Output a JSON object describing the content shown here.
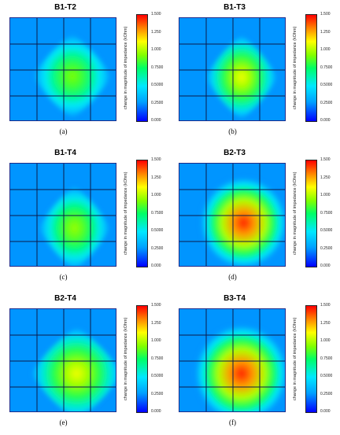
{
  "figure": {
    "panels": [
      {
        "title": "B1-T2",
        "caption": "(a)"
      },
      {
        "title": "B1-T3",
        "caption": "(b)"
      },
      {
        "title": "B1-T4",
        "caption": "(c)"
      },
      {
        "title": "B2-T3",
        "caption": "(d)"
      },
      {
        "title": "B2-T4",
        "caption": "(e)"
      },
      {
        "title": "B3-T4",
        "caption": "(f)"
      }
    ],
    "colorbar": {
      "label": "change in magnitude of impedance (kOhm)",
      "ticks": [
        "1.500",
        "1.250",
        "1.000",
        "0.7500",
        "0.5000",
        "0.2500",
        "0.000"
      ]
    }
  },
  "colors": {
    "background": "#2a5cf2",
    "grid": "#0d1a4a",
    "colormap": [
      "#0000ff",
      "#00a0ff",
      "#00e8ff",
      "#00ff66",
      "#80ff00",
      "#ffff00",
      "#ff8000",
      "#ff0000"
    ]
  },
  "chart_data": [
    {
      "type": "heatmap",
      "title": "B1-T2",
      "grid": true,
      "zlim": [
        0,
        1.5
      ],
      "colorbar_label": "change in magnitude of impedance (kOhm)",
      "peak_value": 0.85,
      "background_value": 0.2
    },
    {
      "type": "heatmap",
      "title": "B1-T3",
      "grid": true,
      "zlim": [
        0,
        1.5
      ],
      "colorbar_label": "change in magnitude of impedance (kOhm)",
      "peak_value": 1.05,
      "background_value": 0.2
    },
    {
      "type": "heatmap",
      "title": "B1-T4",
      "grid": true,
      "zlim": [
        0,
        1.5
      ],
      "colorbar_label": "change in magnitude of impedance (kOhm)",
      "peak_value": 0.9,
      "background_value": 0.2
    },
    {
      "type": "heatmap",
      "title": "B2-T3",
      "grid": true,
      "zlim": [
        0,
        1.5
      ],
      "colorbar_label": "change in magnitude of impedance (kOhm)",
      "peak_value": 1.45,
      "background_value": 0.2
    },
    {
      "type": "heatmap",
      "title": "B2-T4",
      "grid": true,
      "zlim": [
        0,
        1.5
      ],
      "colorbar_label": "change in magnitude of impedance (kOhm)",
      "peak_value": 1.05,
      "background_value": 0.2
    },
    {
      "type": "heatmap",
      "title": "B3-T4",
      "grid": true,
      "zlim": [
        0,
        1.5
      ],
      "colorbar_label": "change in magnitude of impedance (kOhm)",
      "peak_value": 1.45,
      "background_value": 0.2
    }
  ]
}
